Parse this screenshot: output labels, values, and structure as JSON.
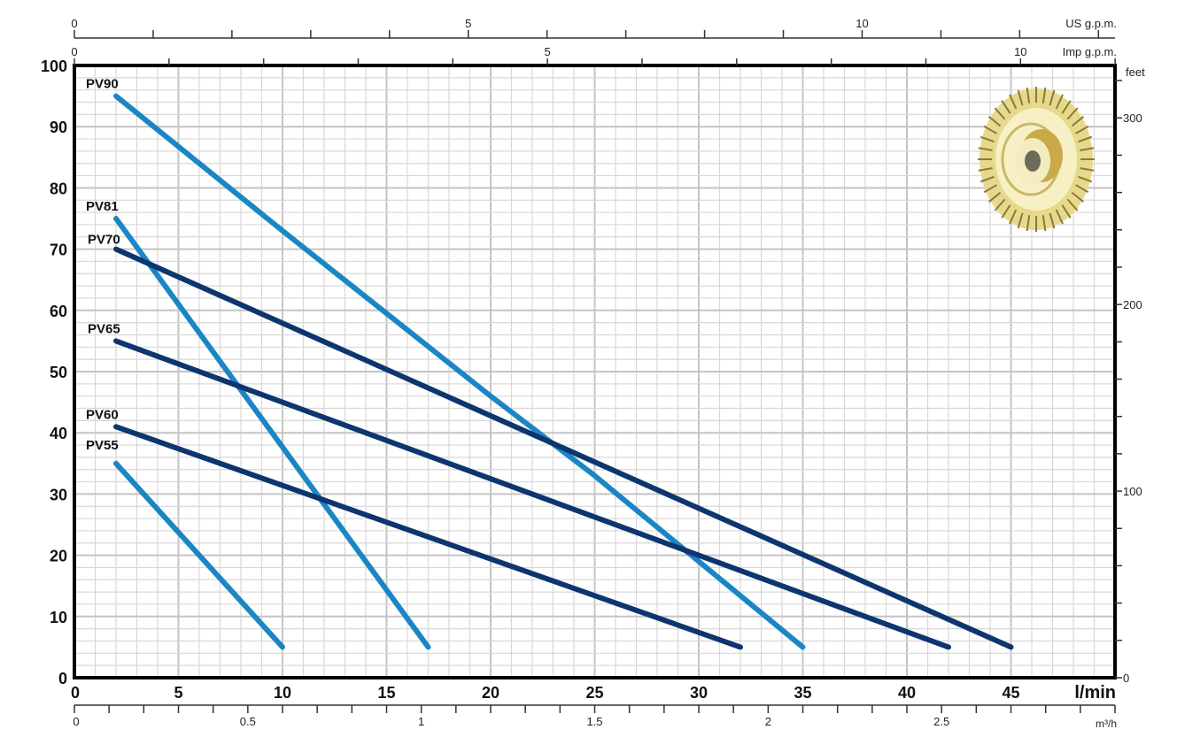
{
  "chart_data": {
    "type": "line",
    "title": "",
    "xlabel": "l/min",
    "ylabel": "",
    "xlim": [
      0,
      50
    ],
    "ylim": [
      0,
      100
    ],
    "grid": true,
    "legend": "inline labels at curve start",
    "x_ticks": [
      0,
      5,
      10,
      15,
      20,
      25,
      30,
      35,
      40,
      45
    ],
    "y_ticks": [
      0,
      10,
      20,
      30,
      40,
      50,
      60,
      70,
      80,
      90,
      100
    ],
    "secondary_axes": {
      "top_us_gpm": {
        "label": "US g.p.m.",
        "ticks": [
          0,
          5,
          10
        ]
      },
      "top_imp_gpm": {
        "label": "Imp g.p.m.",
        "ticks": [
          0,
          5,
          10
        ]
      },
      "bottom_m3h": {
        "label": "m³/h",
        "ticks": [
          0,
          0.5,
          1,
          1.5,
          2,
          2.5
        ]
      },
      "right_feet": {
        "label": "feet",
        "ticks": [
          0,
          100,
          200,
          300
        ]
      }
    },
    "series": [
      {
        "name": "PV90",
        "color": "#1a86c4",
        "points": [
          [
            2,
            95
          ],
          [
            10,
            73
          ],
          [
            15,
            59.5
          ],
          [
            20,
            46
          ],
          [
            25,
            33
          ],
          [
            30,
            19
          ],
          [
            35,
            5
          ]
        ]
      },
      {
        "name": "PV81",
        "color": "#1a86c4",
        "points": [
          [
            2,
            75
          ],
          [
            17,
            5
          ]
        ]
      },
      {
        "name": "PV70",
        "color": "#0d3570",
        "points": [
          [
            2,
            70
          ],
          [
            45,
            5
          ]
        ]
      },
      {
        "name": "PV65",
        "color": "#0d3570",
        "points": [
          [
            2,
            55
          ],
          [
            42,
            5
          ]
        ]
      },
      {
        "name": "PV60",
        "color": "#0d3570",
        "points": [
          [
            2,
            41
          ],
          [
            32,
            5
          ]
        ]
      },
      {
        "name": "PV55",
        "color": "#1a86c4",
        "points": [
          [
            2,
            35
          ],
          [
            10,
            5
          ]
        ]
      }
    ],
    "image": "impeller-illustration"
  }
}
